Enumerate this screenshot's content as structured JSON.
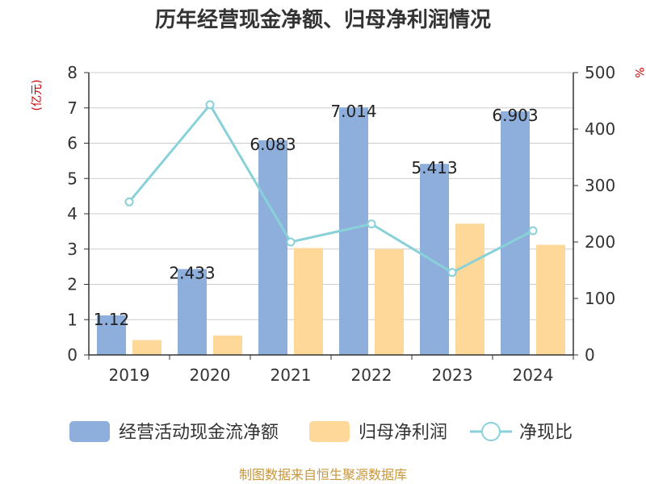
{
  "colors": {
    "cash_flow": "#8eaedb",
    "net_profit": "#fdd898",
    "ratio": "#88d1d8",
    "unit": "#cc0000",
    "source": "#c8963c"
  },
  "chart_data": {
    "type": "bar",
    "title": "历年经营现金净额、归母净利润情况",
    "categories": [
      "2019",
      "2020",
      "2021",
      "2022",
      "2023",
      "2024"
    ],
    "y_left": {
      "unit": "(亿元)",
      "range": [
        0,
        8
      ],
      "ticks": [
        "0",
        "1",
        "2",
        "3",
        "4",
        "5",
        "6",
        "7",
        "8"
      ]
    },
    "y_right": {
      "unit": "%",
      "range": [
        0,
        500
      ],
      "ticks": [
        "0",
        "100",
        "200",
        "300",
        "400",
        "500"
      ]
    },
    "series": [
      {
        "name": "经营活动现金流净额",
        "type": "bar",
        "axis": "left",
        "values": [
          1.12,
          2.433,
          6.083,
          7.014,
          5.413,
          6.903
        ],
        "labels": [
          "1.12",
          "2.433",
          "6.083",
          "7.014",
          "5.413",
          "6.903"
        ]
      },
      {
        "name": "归母净利润",
        "type": "bar",
        "axis": "left",
        "values": [
          0.42,
          0.55,
          3.03,
          3.0,
          3.72,
          3.12
        ]
      },
      {
        "name": "净现比",
        "type": "line",
        "axis": "right",
        "values": [
          271,
          443,
          200,
          232,
          146,
          220
        ]
      }
    ],
    "grid": true,
    "legend_position": "bottom"
  },
  "source_note": "制图数据来自恒生聚源数据库"
}
